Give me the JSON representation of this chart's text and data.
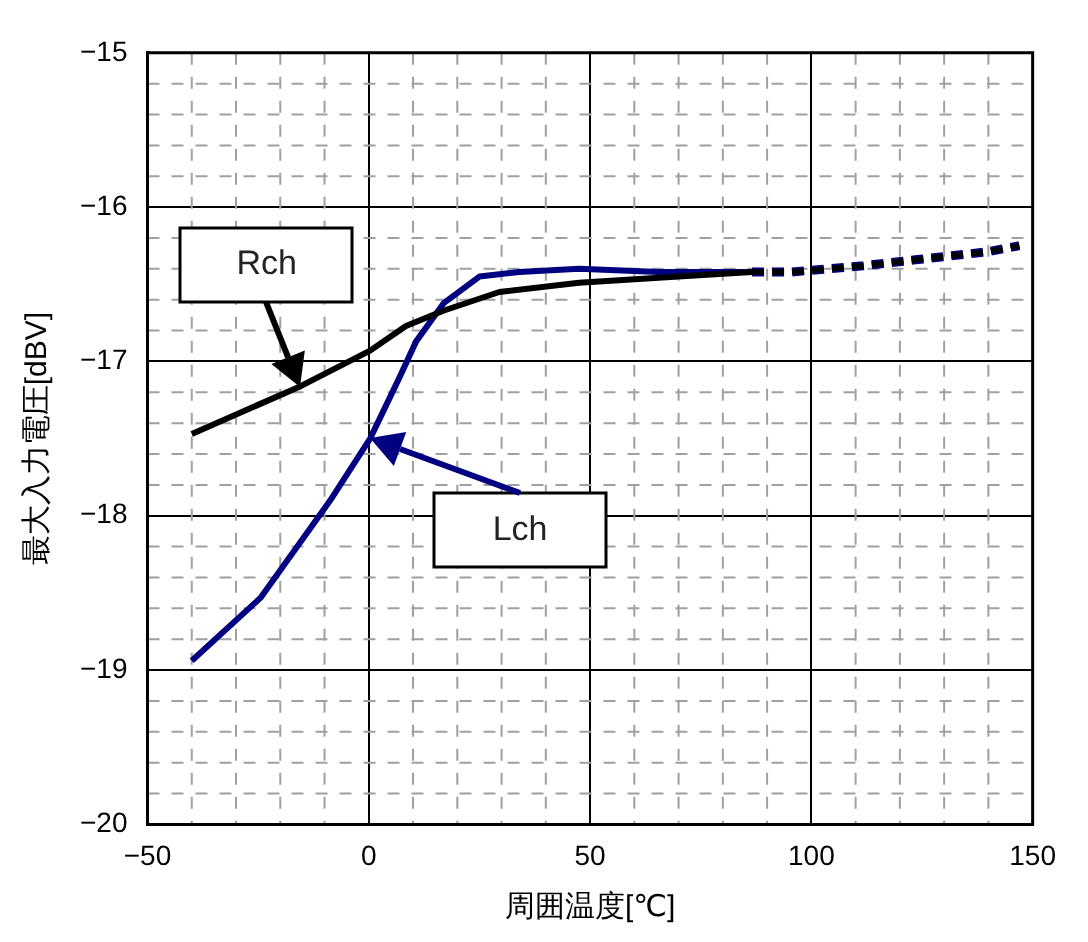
{
  "chart_data": {
    "type": "line",
    "xlabel": "周囲温度[℃]",
    "ylabel": "最大入力電圧[dBV]",
    "xlim": [
      -50,
      150
    ],
    "xticks": [
      -50,
      0,
      50,
      100,
      150
    ],
    "ylim": [
      -20,
      -15
    ],
    "yticks": [
      -20,
      -19,
      -18,
      -17,
      -16,
      -15
    ],
    "grid": true,
    "marker": "none",
    "series": [
      {
        "name": "Rch",
        "color": "#000000",
        "line_style": "solid",
        "x": [
          -40,
          -15.4,
          0.3,
          8.4,
          17,
          29.5,
          47.5,
          70,
          86.6
        ],
        "values": [
          -17.47,
          -17.16,
          -16.93,
          -16.77,
          -16.67,
          -16.55,
          -16.49,
          -16.45,
          -16.42
        ]
      },
      {
        "name": "Lch",
        "color": "#000080",
        "line_style": "solid",
        "x": [
          -40,
          -24.4,
          -8.7,
          0.3,
          7,
          10.7,
          17,
          25,
          34,
          47.5,
          65.5,
          86.6
        ],
        "values": [
          -18.94,
          -18.53,
          -17.9,
          -17.5,
          -17.1,
          -16.87,
          -16.62,
          -16.45,
          -16.42,
          -16.4,
          -16.42,
          -16.42
        ]
      },
      {
        "color": "#000000",
        "line_style": "dashed",
        "x": [
          86.6,
          95.6,
          111.8,
          124,
          139.6,
          147
        ],
        "values": [
          -16.42,
          -16.42,
          -16.38,
          -16.34,
          -16.29,
          -16.25
        ]
      },
      {
        "color": "#000080",
        "line_style": "dashed",
        "x": [
          86.6,
          95.6,
          111.8,
          124,
          139.6,
          147
        ],
        "values": [
          -16.42,
          -16.42,
          -16.38,
          -16.34,
          -16.29,
          -16.25
        ]
      }
    ]
  }
}
